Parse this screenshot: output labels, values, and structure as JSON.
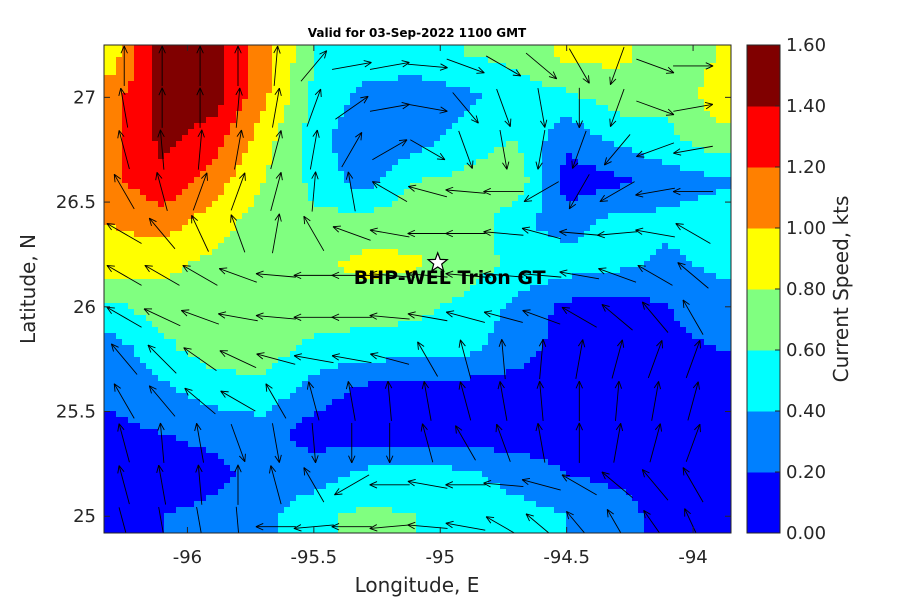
{
  "chart_data": {
    "type": "heatmap",
    "subtype": "filled-contour-with-vector-arrows",
    "title": "Valid for 03-Sep-2022 1100 GMT",
    "xlabel": "Longitude, E",
    "ylabel": "Latitude, N",
    "xlim": [
      -96.33,
      -93.85
    ],
    "ylim": [
      24.92,
      27.25
    ],
    "xticks": [
      -96,
      -95.5,
      -95,
      -94.5,
      -94
    ],
    "xtick_labels": [
      "-96",
      "-95.5",
      "-95",
      "-94.5",
      "-94"
    ],
    "yticks": [
      25,
      25.5,
      26,
      26.5,
      27
    ],
    "ytick_labels": [
      "25",
      "25.5",
      "26",
      "26.5",
      "27"
    ],
    "grid": false,
    "colorbar": {
      "label": "Current Speed, kts",
      "levels": [
        0.0,
        0.2,
        0.4,
        0.6,
        0.8,
        1.0,
        1.2,
        1.4,
        1.6
      ],
      "tick_labels": [
        "0.00",
        "0.20",
        "0.40",
        "0.60",
        "0.80",
        "1.00",
        "1.20",
        "1.40",
        "1.60"
      ],
      "colors": [
        "#0000ff",
        "#0080ff",
        "#00ffff",
        "#80ff80",
        "#ffff00",
        "#ff8000",
        "#ff0000",
        "#800000"
      ]
    },
    "marker": {
      "label": "BHP-WEL Trion GT",
      "lon": -95.01,
      "lat": 26.21,
      "symbol": "star"
    },
    "speed_field": {
      "lon": [
        -96.3,
        -96.1,
        -95.9,
        -95.7,
        -95.5,
        -95.3,
        -95.1,
        -94.9,
        -94.7,
        -94.5,
        -94.3,
        -94.1,
        -93.9
      ],
      "lat": [
        27.2,
        27.0,
        26.8,
        26.6,
        26.4,
        26.2,
        26.0,
        25.8,
        25.6,
        25.4,
        25.2,
        25.0
      ],
      "values": [
        [
          0.9,
          1.5,
          1.5,
          1.1,
          0.6,
          0.5,
          0.55,
          0.6,
          0.65,
          0.85,
          0.85,
          0.7,
          0.8
        ],
        [
          1.1,
          1.5,
          1.5,
          1.05,
          0.55,
          0.35,
          0.25,
          0.35,
          0.5,
          0.55,
          0.7,
          0.65,
          0.9
        ],
        [
          1.15,
          1.45,
          1.3,
          0.9,
          0.5,
          0.2,
          0.3,
          0.5,
          0.6,
          0.25,
          0.45,
          0.55,
          0.75
        ],
        [
          1.15,
          1.35,
          1.1,
          0.8,
          0.55,
          0.3,
          0.6,
          0.65,
          0.75,
          0.1,
          0.15,
          0.3,
          0.35
        ],
        [
          1.0,
          1.1,
          0.9,
          0.7,
          0.65,
          0.7,
          0.75,
          0.78,
          0.45,
          0.3,
          0.5,
          0.45,
          0.55
        ],
        [
          0.9,
          0.85,
          0.75,
          0.7,
          0.75,
          0.85,
          0.82,
          0.7,
          0.55,
          0.5,
          0.45,
          0.35,
          0.45
        ],
        [
          0.55,
          0.7,
          0.65,
          0.7,
          0.72,
          0.7,
          0.65,
          0.55,
          0.35,
          0.15,
          0.1,
          0.2,
          0.3
        ],
        [
          0.3,
          0.55,
          0.7,
          0.7,
          0.55,
          0.5,
          0.5,
          0.45,
          0.3,
          0.1,
          0.1,
          0.15,
          0.2
        ],
        [
          0.25,
          0.35,
          0.5,
          0.55,
          0.3,
          0.15,
          0.1,
          0.1,
          0.1,
          0.1,
          0.1,
          0.1,
          0.1
        ],
        [
          0.15,
          0.2,
          0.25,
          0.3,
          0.1,
          0.1,
          0.05,
          0.05,
          0.1,
          0.1,
          0.1,
          0.1,
          0.1
        ],
        [
          0.1,
          0.1,
          0.15,
          0.25,
          0.3,
          0.45,
          0.5,
          0.45,
          0.3,
          0.2,
          0.15,
          0.1,
          0.1
        ],
        [
          0.15,
          0.2,
          0.25,
          0.35,
          0.55,
          0.65,
          0.6,
          0.55,
          0.5,
          0.4,
          0.3,
          0.1,
          0.1
        ]
      ]
    },
    "vector_field": {
      "lon": [
        -96.25,
        -96.1,
        -95.95,
        -95.8,
        -95.65,
        -95.5,
        -95.35,
        -95.2,
        -95.05,
        -94.9,
        -94.75,
        -94.6,
        -94.45,
        -94.3,
        -94.15,
        -94.0
      ],
      "lat": [
        27.15,
        26.95,
        26.75,
        26.55,
        26.35,
        26.15,
        25.95,
        25.75,
        25.55,
        25.35,
        25.15,
        24.95
      ],
      "direction_deg": [
        [
          0,
          0,
          0,
          0,
          5,
          40,
          80,
          80,
          95,
          110,
          120,
          130,
          150,
          200,
          110,
          90
        ],
        [
          350,
          0,
          0,
          5,
          10,
          20,
          55,
          80,
          100,
          140,
          160,
          170,
          180,
          200,
          110,
          80
        ],
        [
          345,
          355,
          5,
          10,
          15,
          10,
          30,
          60,
          120,
          160,
          170,
          190,
          200,
          220,
          250,
          260
        ],
        [
          330,
          345,
          20,
          20,
          15,
          5,
          350,
          300,
          285,
          275,
          270,
          240,
          210,
          240,
          260,
          270
        ],
        [
          300,
          320,
          335,
          340,
          10,
          330,
          290,
          280,
          270,
          270,
          275,
          285,
          275,
          265,
          280,
          300
        ],
        [
          300,
          300,
          300,
          290,
          275,
          270,
          270,
          275,
          275,
          275,
          275,
          275,
          280,
          290,
          300,
          310
        ],
        [
          300,
          295,
          290,
          280,
          275,
          270,
          270,
          275,
          280,
          285,
          285,
          290,
          300,
          310,
          320,
          330
        ],
        [
          320,
          315,
          305,
          295,
          285,
          280,
          280,
          285,
          330,
          345,
          355,
          5,
          10,
          15,
          20,
          20
        ],
        [
          330,
          320,
          310,
          300,
          330,
          345,
          350,
          355,
          350,
          345,
          350,
          355,
          0,
          5,
          10,
          15
        ],
        [
          345,
          355,
          350,
          160,
          170,
          175,
          180,
          180,
          345,
          330,
          340,
          350,
          0,
          10,
          15,
          20
        ],
        [
          345,
          350,
          355,
          0,
          345,
          330,
          240,
          270,
          280,
          270,
          275,
          285,
          300,
          310,
          320,
          330
        ],
        [
          165,
          170,
          170,
          175,
          270,
          265,
          270,
          265,
          275,
          280,
          300,
          310,
          320,
          330,
          325,
          335
        ]
      ]
    }
  }
}
